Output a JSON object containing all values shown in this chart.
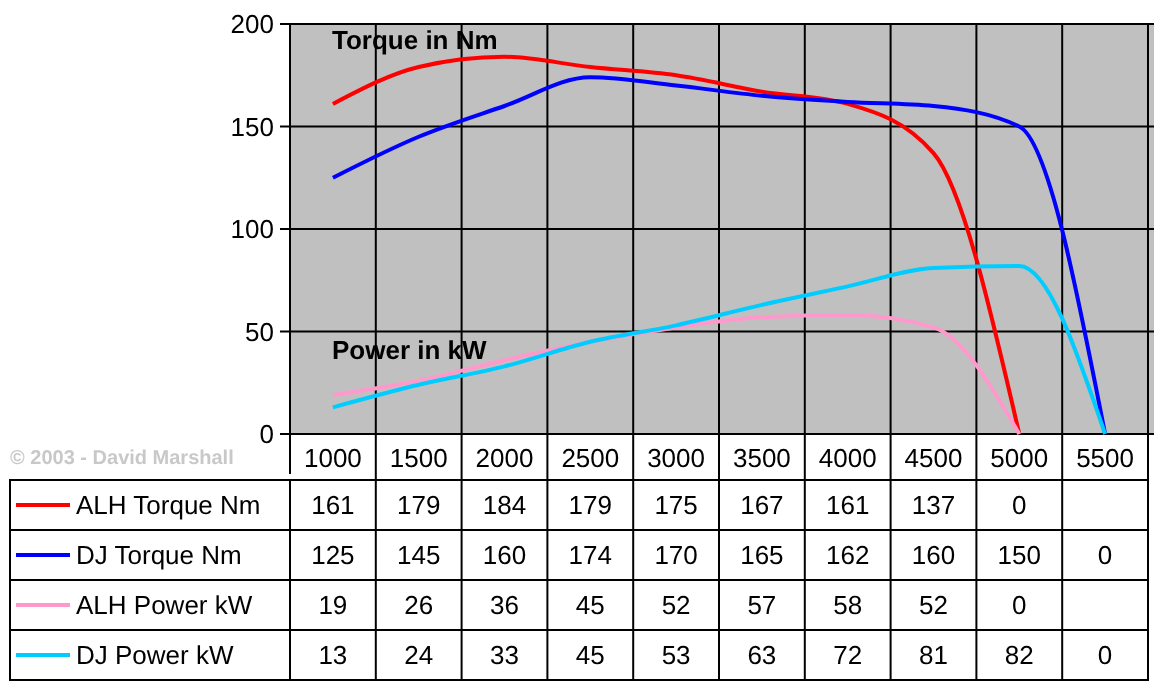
{
  "chart_data": {
    "type": "line",
    "categories": [
      "1000",
      "1500",
      "2000",
      "2500",
      "3000",
      "3500",
      "4000",
      "4500",
      "5000",
      "5500"
    ],
    "series": [
      {
        "name": "ALH Torque Nm",
        "color": "#ff0000",
        "values": [
          161,
          179,
          184,
          179,
          175,
          167,
          161,
          137,
          0,
          null
        ]
      },
      {
        "name": "DJ Torque Nm",
        "color": "#0000ff",
        "values": [
          125,
          145,
          160,
          174,
          170,
          165,
          162,
          160,
          150,
          0
        ]
      },
      {
        "name": "ALH Power kW",
        "color": "#ff99cc",
        "values": [
          19,
          26,
          36,
          45,
          52,
          57,
          58,
          52,
          0,
          null
        ]
      },
      {
        "name": "DJ Power kW",
        "color": "#00ccff",
        "values": [
          13,
          24,
          33,
          45,
          53,
          63,
          72,
          81,
          82,
          0
        ]
      }
    ],
    "ylim": [
      0,
      200
    ],
    "yticks": [
      0,
      50,
      100,
      150,
      200
    ],
    "grid": true,
    "data_labels": true,
    "legend": "bottom",
    "marker": "none",
    "line_style": "solid",
    "annotations": [
      "Torque in Nm",
      "Power in kW",
      "© 2003 - David Marshall"
    ]
  }
}
